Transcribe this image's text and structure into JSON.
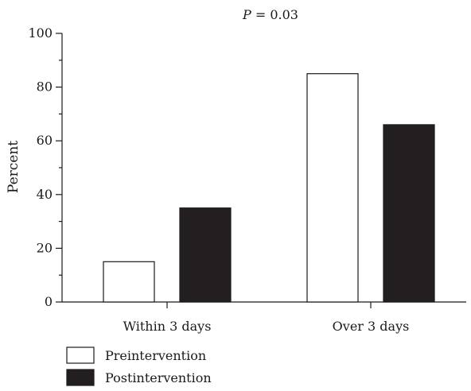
{
  "chart_data": {
    "type": "bar",
    "annotation": {
      "prefix": "P",
      "value": " = 0.03"
    },
    "xlabel": "",
    "ylabel": "Percent",
    "ylim": [
      0,
      100
    ],
    "yticks": [
      0,
      20,
      40,
      60,
      80,
      100
    ],
    "categories": [
      "Within 3 days",
      "Over 3 days"
    ],
    "series": [
      {
        "name": "Preintervention",
        "values": [
          15,
          85
        ],
        "color": "#ffffff",
        "stroke": "#1a1a1a"
      },
      {
        "name": "Postintervention",
        "values": [
          35,
          66
        ],
        "color": "#231f20",
        "stroke": "#1a1a1a"
      }
    ],
    "grid": false,
    "legend_position": "bottom-left"
  }
}
